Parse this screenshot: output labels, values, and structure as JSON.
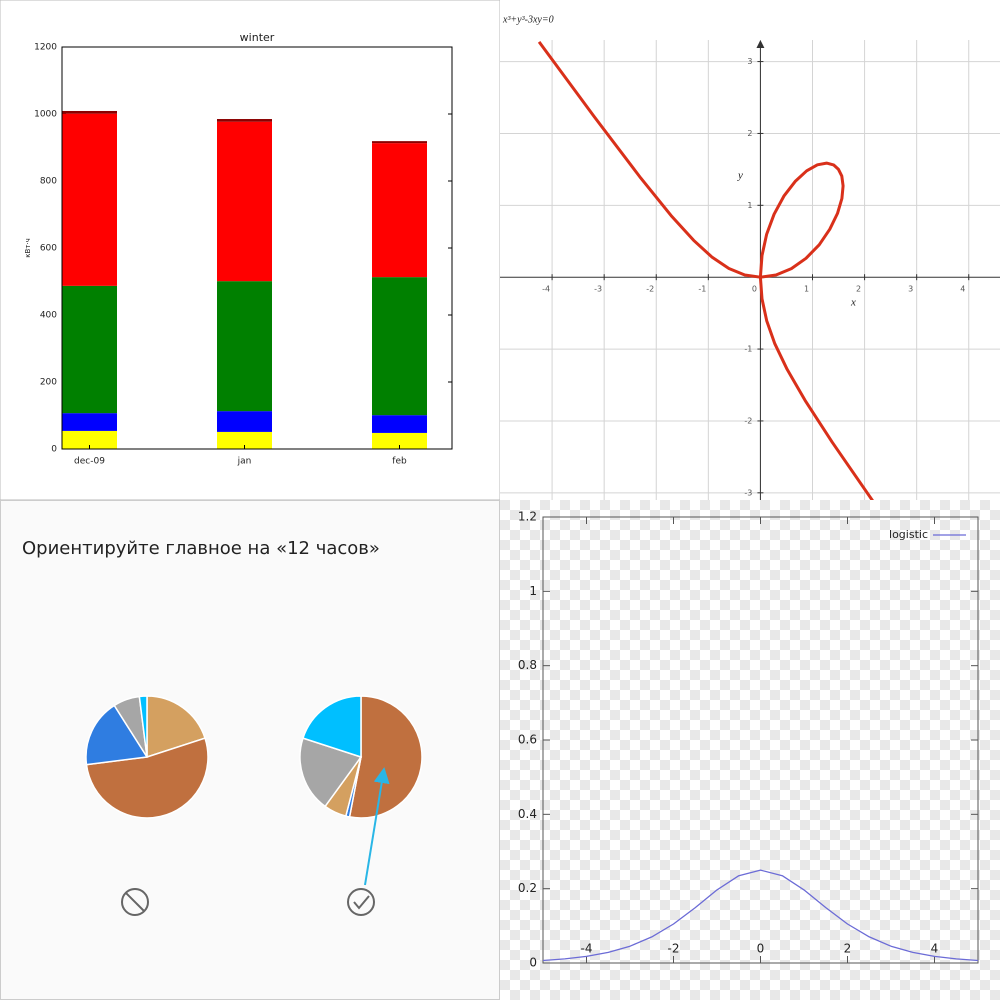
{
  "chart_data": [
    {
      "type": "bar",
      "stacked": true,
      "title": "winter",
      "ylabel": "кВт·ч",
      "categories": [
        "dec-09",
        "jan",
        "feb"
      ],
      "series": [
        {
          "color": "#ffff00",
          "values": [
            54,
            51,
            48
          ]
        },
        {
          "color": "#0000ff",
          "values": [
            53,
            62,
            53
          ]
        },
        {
          "color": "#008000",
          "values": [
            380,
            388,
            412
          ]
        },
        {
          "color": "#ff0000",
          "values": [
            514,
            476,
            400
          ]
        },
        {
          "color": "#8b0000",
          "values": [
            8,
            8,
            6
          ]
        }
      ],
      "ylim": [
        0,
        1200
      ],
      "yticks": [
        0,
        200,
        400,
        600,
        800,
        1000,
        1200
      ]
    },
    {
      "type": "line",
      "title": "x³+y³-3xy=0",
      "xlabel": "x",
      "ylabel": "y",
      "x": [
        -4.25,
        -3.196,
        -2.296,
        -1.714,
        -1.282,
        -0.925,
        -0.605,
        -0.3,
        0,
        0.3,
        0.595,
        0.876,
        1.128,
        1.333,
        1.48,
        1.564,
        1.587,
        1.562,
        1.5,
        1.406,
        1.27,
        1.095,
        0.888,
        0.667,
        0.451,
        0.263,
        0.119,
        0.03,
        0,
        0.03,
        0.121,
        0.277,
        0.513,
        0.857,
        1.378,
        2.237
      ],
      "series": [
        {
          "color": "#d9301a",
          "values": [
            3.273,
            2.237,
            1.378,
            0.857,
            0.513,
            0.277,
            0.121,
            0.03,
            0,
            0.03,
            0.119,
            0.263,
            0.451,
            0.667,
            0.888,
            1.095,
            1.27,
            1.406,
            1.5,
            1.562,
            1.587,
            1.564,
            1.48,
            1.333,
            1.128,
            0.876,
            0.595,
            0.3,
            0,
            -0.3,
            -0.605,
            -0.925,
            -1.282,
            -1.714,
            -2.296,
            -3.196
          ]
        }
      ],
      "xlim": [
        -5,
        4.6
      ],
      "ylim": [
        -3.1,
        3.3
      ],
      "xticks": [
        -4,
        -3,
        -2,
        -1,
        0,
        1,
        2,
        3,
        4
      ],
      "yticks": [
        -3,
        -2,
        -1,
        1,
        2,
        3
      ],
      "grid": true
    },
    {
      "type": "pie",
      "title": "Ориентируйте главное на «12 часов»",
      "series": [
        {
          "colors": [
            "#d4a060",
            "#c0703f",
            "#2f7de1",
            "#a6a6a6",
            "#00bfff"
          ],
          "values": [
            20,
            53,
            18,
            7,
            2
          ]
        },
        {
          "colors": [
            "#c0703f",
            "#2f7de1",
            "#d4a060",
            "#a6a6a6",
            "#00bfff"
          ],
          "values": [
            53,
            1,
            6,
            20,
            20
          ]
        }
      ]
    },
    {
      "type": "line",
      "x": [
        -5,
        -4.5,
        -4,
        -3.5,
        -3,
        -2.5,
        -2,
        -1.5,
        -1,
        -0.5,
        0,
        0.5,
        1,
        1.5,
        2,
        2.5,
        3,
        3.5,
        4,
        4.5,
        5
      ],
      "series": [
        {
          "name": "logistic",
          "color": "#6b6bd6",
          "values": [
            0.0066,
            0.0109,
            0.0177,
            0.0285,
            0.0452,
            0.0701,
            0.105,
            0.1491,
            0.1966,
            0.235,
            0.25,
            0.235,
            0.1966,
            0.1491,
            0.105,
            0.0701,
            0.0452,
            0.0285,
            0.0177,
            0.0109,
            0.0066
          ]
        }
      ],
      "xlim": [
        -5,
        5
      ],
      "ylim": [
        0,
        1.2
      ],
      "xticks": [
        -4,
        -2,
        0,
        2,
        4
      ],
      "yticks": [
        0,
        0.2,
        0.4,
        0.6,
        0.8,
        1,
        1.2
      ],
      "legend": "upper right",
      "grid": false
    }
  ]
}
